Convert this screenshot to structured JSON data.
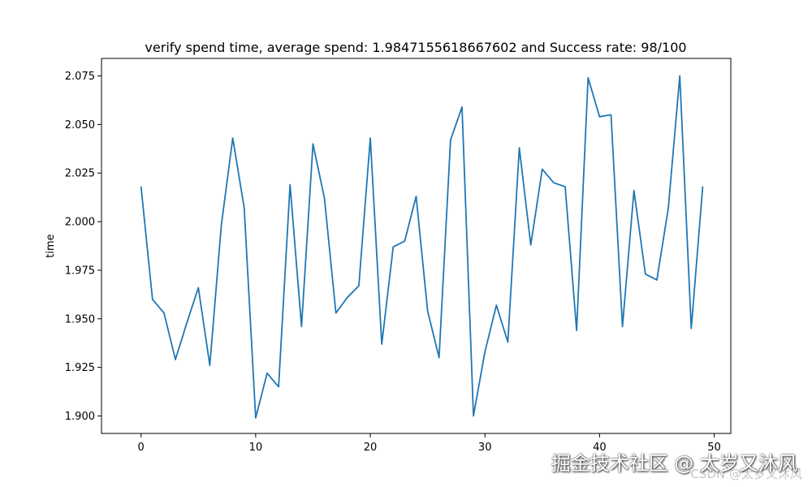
{
  "chart_data": {
    "type": "line",
    "title": "verify spend time, average spend: 1.9847155618667602 and Success rate: 98/100",
    "xlabel": "",
    "ylabel": "time",
    "xlim": [
      -3.45,
      51.45
    ],
    "ylim": [
      1.891,
      2.084
    ],
    "xticks": [
      "0",
      "10",
      "20",
      "30",
      "40",
      "50"
    ],
    "yticks": [
      "1.900",
      "1.925",
      "1.950",
      "1.975",
      "2.000",
      "2.025",
      "2.050",
      "2.075"
    ],
    "grid": false,
    "color": "#1f77b4",
    "series": [
      {
        "x": [
          0,
          1,
          2,
          3,
          4,
          5,
          6,
          7,
          8,
          9,
          10,
          11,
          12,
          13,
          14,
          15,
          16,
          17,
          18,
          19,
          20,
          21,
          22,
          23,
          24,
          25,
          26,
          27,
          28,
          29,
          30,
          31,
          32,
          33,
          34,
          35,
          36,
          37,
          38,
          39,
          40,
          41,
          42,
          43,
          44,
          45,
          46,
          47,
          48,
          49
        ],
        "values": [
          2.018,
          1.96,
          1.953,
          1.929,
          1.948,
          1.966,
          1.926,
          1.998,
          2.043,
          2.007,
          1.899,
          1.922,
          1.915,
          2.019,
          1.946,
          2.04,
          2.012,
          1.953,
          1.961,
          1.967,
          2.043,
          1.937,
          1.987,
          1.99,
          2.013,
          1.954,
          1.93,
          2.042,
          2.059,
          1.9,
          1.933,
          1.957,
          1.938,
          2.038,
          1.988,
          2.027,
          2.02,
          2.018,
          1.944,
          2.074,
          2.054,
          2.055,
          1.946,
          2.016,
          1.973,
          1.97,
          2.007,
          2.075,
          1.945,
          2.018
        ]
      }
    ]
  },
  "watermark": {
    "main": "掘金技术社区 @ 太岁又沐风",
    "sub": "CSDN @太岁又沐风"
  }
}
